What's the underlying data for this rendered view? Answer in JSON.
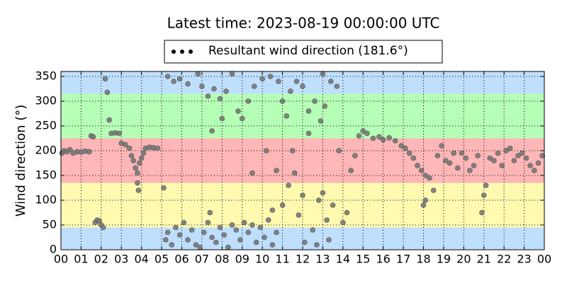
{
  "chart_data": {
    "type": "scatter",
    "title": "Latest time: 2023-08-19 00:00:00 UTC",
    "ylabel": "Wind direction (°)",
    "legend": "upper center",
    "grid": true,
    "xlim": [
      0,
      24
    ],
    "ylim": [
      0,
      360
    ],
    "xticks": [
      {
        "value": 0,
        "label": "00"
      },
      {
        "value": 1,
        "label": "01"
      },
      {
        "value": 2,
        "label": "02"
      },
      {
        "value": 3,
        "label": "03"
      },
      {
        "value": 4,
        "label": "04"
      },
      {
        "value": 5,
        "label": "05"
      },
      {
        "value": 6,
        "label": "06"
      },
      {
        "value": 7,
        "label": "07"
      },
      {
        "value": 8,
        "label": "08"
      },
      {
        "value": 9,
        "label": "09"
      },
      {
        "value": 10,
        "label": "10"
      },
      {
        "value": 11,
        "label": "11"
      },
      {
        "value": 12,
        "label": "12"
      },
      {
        "value": 13,
        "label": "13"
      },
      {
        "value": 14,
        "label": "14"
      },
      {
        "value": 15,
        "label": "15"
      },
      {
        "value": 16,
        "label": "16"
      },
      {
        "value": 17,
        "label": "17"
      },
      {
        "value": 18,
        "label": "18"
      },
      {
        "value": 19,
        "label": "19"
      },
      {
        "value": 20,
        "label": "20"
      },
      {
        "value": 21,
        "label": "21"
      },
      {
        "value": 22,
        "label": "22"
      },
      {
        "value": 23,
        "label": "23"
      },
      {
        "value": 24,
        "label": "00"
      }
    ],
    "yticks": [
      0,
      50,
      100,
      150,
      200,
      250,
      300,
      350
    ],
    "bands": [
      {
        "from": 0,
        "to": 45,
        "color": "#bfdfff"
      },
      {
        "from": 45,
        "to": 135,
        "color": "#fffab0"
      },
      {
        "from": 135,
        "to": 225,
        "color": "#ffb6b6"
      },
      {
        "from": 225,
        "to": 315,
        "color": "#b6ffb6"
      },
      {
        "from": 315,
        "to": 360,
        "color": "#bfdfff"
      }
    ],
    "series": [
      {
        "name": "Resultant wind direction (181.6°)",
        "color": "#777777",
        "x": [
          0.05,
          0.15,
          0.3,
          0.45,
          0.6,
          0.8,
          1.0,
          1.2,
          1.4,
          1.5,
          1.6,
          1.7,
          1.8,
          1.9,
          2.0,
          2.1,
          2.2,
          2.3,
          2.4,
          2.5,
          2.7,
          2.9,
          3.0,
          3.2,
          3.4,
          3.5,
          3.6,
          3.7,
          3.8,
          3.9,
          4.0,
          4.1,
          4.2,
          4.4,
          4.6,
          4.8,
          3.8,
          3.85,
          5.1,
          5.2,
          5.3,
          5.5,
          5.7,
          5.9,
          6.1,
          6.3,
          6.5,
          6.7,
          6.9,
          7.1,
          7.3,
          7.5,
          7.7,
          7.9,
          8.1,
          8.3,
          8.5,
          8.7,
          8.9,
          9.1,
          9.3,
          9.5,
          9.7,
          9.9,
          10.1,
          10.3,
          10.5,
          10.7,
          5.3,
          5.6,
          5.9,
          6.3,
          6.8,
          7.0,
          7.3,
          7.6,
          7.9,
          8.2,
          8.5,
          8.8,
          9.0,
          9.3,
          9.6,
          10.0,
          10.4,
          10.8,
          11.0,
          11.2,
          11.4,
          11.7,
          12.0,
          12.3,
          12.6,
          12.9,
          13.1,
          13.4,
          13.7,
          7.5,
          7.4,
          8.0,
          9.5,
          10.2,
          10.5,
          10.7,
          11.0,
          11.3,
          11.5,
          11.6,
          11.8,
          12.0,
          12.3,
          12.5,
          12.8,
          13.0,
          13.2,
          13.5,
          13.8,
          14.0,
          14.2,
          14.4,
          14.6,
          14.8,
          15.0,
          13.0,
          12.7,
          13.3,
          12.1,
          15.2,
          15.5,
          15.8,
          16.0,
          16.3,
          16.6,
          16.9,
          17.1,
          17.3,
          17.5,
          17.7,
          17.9,
          18.1,
          18.3,
          18.1,
          18.0,
          18.5,
          18.7,
          18.9,
          19.1,
          19.3,
          19.5,
          19.7,
          19.9,
          20.1,
          20.3,
          20.5,
          20.7,
          20.9,
          21.0,
          21.1,
          21.3,
          21.5,
          21.7,
          21.9,
          22.1,
          22.3,
          22.5,
          22.7,
          22.9,
          23.1,
          23.3,
          23.5,
          23.7,
          23.9
        ],
        "values": [
          195,
          200,
          198,
          202,
          195,
          198,
          197,
          199,
          198,
          230,
          228,
          55,
          60,
          58,
          50,
          45,
          345,
          318,
          262,
          235,
          236,
          235,
          215,
          212,
          205,
          190,
          180,
          165,
          155,
          175,
          185,
          195,
          205,
          207,
          206,
          205,
          135,
          120,
          125,
          20,
          35,
          10,
          45,
          30,
          55,
          20,
          40,
          10,
          5,
          35,
          55,
          25,
          15,
          45,
          30,
          5,
          50,
          40,
          20,
          55,
          35,
          50,
          15,
          45,
          25,
          60,
          10,
          35,
          350,
          340,
          345,
          335,
          355,
          330,
          310,
          325,
          305,
          320,
          355,
          280,
          265,
          300,
          330,
          345,
          350,
          340,
          300,
          270,
          320,
          340,
          330,
          280,
          300,
          260,
          290,
          340,
          330,
          240,
          75,
          265,
          155,
          200,
          80,
          160,
          90,
          130,
          200,
          155,
          70,
          110,
          235,
          40,
          100,
          115,
          60,
          90,
          200,
          55,
          75,
          160,
          190,
          230,
          240,
          355,
          10,
          20,
          15,
          235,
          225,
          228,
          222,
          226,
          220,
          210,
          205,
          195,
          185,
          170,
          160,
          150,
          145,
          100,
          90,
          120,
          190,
          210,
          180,
          175,
          195,
          165,
          195,
          185,
          160,
          170,
          190,
          75,
          110,
          130,
          185,
          180,
          195,
          170,
          200,
          205,
          180,
          190,
          195,
          185,
          170,
          160,
          175,
          190
        ]
      }
    ]
  }
}
